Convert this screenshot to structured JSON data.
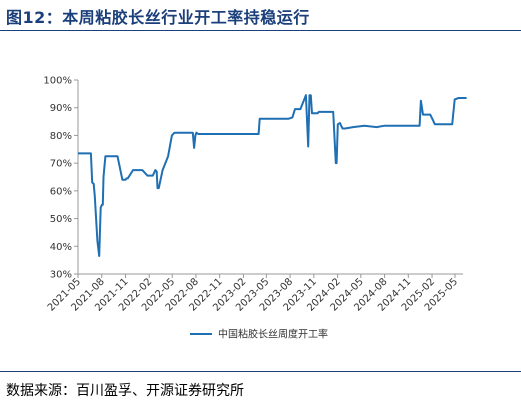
{
  "figure_title": "图12：本周粘胶长丝行业开工率持稳运行",
  "source_note": "数据来源：百川盈孚、开源证券研究所",
  "colors": {
    "series": "#1f6fb3",
    "title": "#1a3f7a",
    "axis": "#999999"
  },
  "chart_data": {
    "type": "line",
    "title": "",
    "xlabel": "",
    "ylabel": "",
    "ylim": [
      30,
      100
    ],
    "yticks": [
      "30%",
      "40%",
      "50%",
      "60%",
      "70%",
      "80%",
      "90%",
      "100%"
    ],
    "xlim": [
      "2021-05",
      "2025-06"
    ],
    "xticks": [
      "2021-05",
      "2021-08",
      "2021-11",
      "2022-02",
      "2022-05",
      "2022-08",
      "2022-11",
      "2023-02",
      "2023-05",
      "2023-08",
      "2023-11",
      "2024-02",
      "2024-05",
      "2024-08",
      "2024-11",
      "2025-02",
      "2025-05"
    ],
    "grid": false,
    "legend_position": "bottom",
    "series": [
      {
        "name": "中国粘胶长丝周度开工率",
        "x": [
          "2021-05-01",
          "2021-06-20",
          "2021-06-25",
          "2021-07-01",
          "2021-07-05",
          "2021-07-15",
          "2021-07-22",
          "2021-07-28",
          "2021-08-02",
          "2021-08-05",
          "2021-08-08",
          "2021-08-15",
          "2021-08-22",
          "2021-09-05",
          "2021-10-01",
          "2021-10-20",
          "2021-11-01",
          "2021-11-05",
          "2021-11-10",
          "2021-11-30",
          "2021-12-10",
          "2022-01-05",
          "2022-01-25",
          "2022-02-15",
          "2022-02-25",
          "2022-03-02",
          "2022-03-05",
          "2022-03-10",
          "2022-03-25",
          "2022-04-15",
          "2022-04-30",
          "2022-05-10",
          "2022-05-20",
          "2022-05-30",
          "2022-07-20",
          "2022-07-25",
          "2022-07-30",
          "2022-08-03",
          "2022-08-10",
          "2022-08-20",
          "2022-10-01",
          "2022-12-01",
          "2023-02-01",
          "2023-04-01",
          "2023-04-05",
          "2023-06-01",
          "2023-07-25",
          "2023-08-10",
          "2023-08-20",
          "2023-09-10",
          "2023-10-01",
          "2023-10-10",
          "2023-10-15",
          "2023-10-20",
          "2023-10-25",
          "2023-11-15",
          "2023-11-20",
          "2023-11-22",
          "2023-12-10",
          "2024-01-15",
          "2024-01-25",
          "2024-01-28",
          "2024-02-02",
          "2024-02-10",
          "2024-02-20",
          "2024-03-01",
          "2024-04-01",
          "2024-05-15",
          "2024-07-01",
          "2024-08-01",
          "2024-10-01",
          "2024-12-15",
          "2024-12-20",
          "2024-12-28",
          "2025-01-05",
          "2025-01-25",
          "2025-02-02",
          "2025-02-12",
          "2025-03-01",
          "2025-04-20",
          "2025-04-30",
          "2025-05-15",
          "2025-06-15"
        ],
        "values": [
          73.5,
          73.5,
          63,
          62.5,
          58,
          42,
          36.5,
          54,
          55,
          55,
          65,
          72.5,
          72.5,
          72.5,
          72.5,
          64,
          64,
          64.5,
          64.5,
          67.5,
          67.5,
          67.5,
          65.5,
          65.5,
          67.5,
          67,
          61,
          61,
          67.5,
          72.5,
          80,
          81,
          81,
          81,
          81,
          75.5,
          80,
          81,
          80.5,
          80.5,
          80.5,
          80.5,
          80.5,
          80.5,
          86,
          86,
          86,
          86.5,
          89.5,
          89.5,
          94.5,
          76,
          94.5,
          94.5,
          88,
          88,
          88.5,
          88.5,
          88.5,
          88.5,
          70,
          70,
          84,
          84.5,
          82.5,
          82.5,
          83,
          83.5,
          83,
          83.5,
          83.5,
          83.5,
          92.5,
          87.5,
          87.5,
          87.5,
          86,
          84,
          84,
          84,
          93,
          93.5,
          93.5
        ]
      }
    ]
  }
}
